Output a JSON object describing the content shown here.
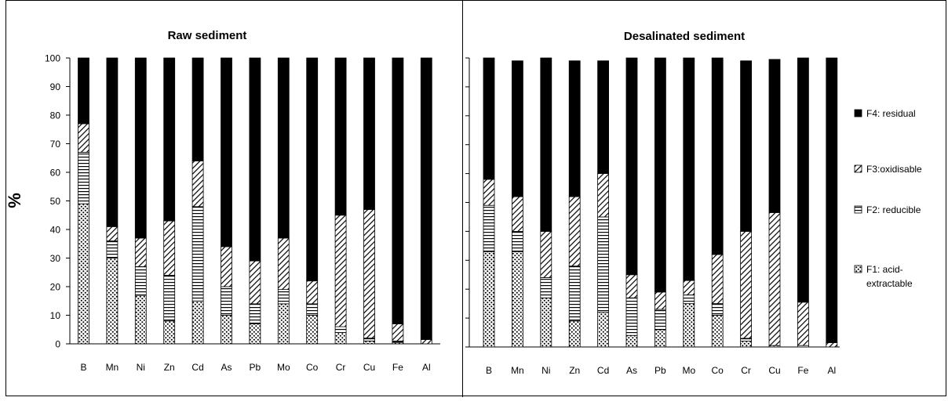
{
  "y_axis_label": "%",
  "chart_data": [
    {
      "type": "bar",
      "stacked": true,
      "title": "Raw sediment",
      "xlabel": "",
      "ylabel": "%",
      "ylim": [
        0,
        100
      ],
      "yticks": [
        0,
        10,
        20,
        30,
        40,
        50,
        60,
        70,
        80,
        90,
        100
      ],
      "grid": false,
      "categories": [
        "B",
        "Mn",
        "Ni",
        "Zn",
        "Cd",
        "As",
        "Pb",
        "Mo",
        "Co",
        "Cr",
        "Cu",
        "Fe",
        "Al"
      ],
      "series": [
        {
          "name": "F1: acid-extractable",
          "pattern": "dots",
          "values": [
            49,
            30,
            17,
            8,
            15,
            10,
            7,
            14,
            10,
            4,
            1,
            0.5,
            0
          ]
        },
        {
          "name": "F2: reducible",
          "pattern": "horizontal",
          "values": [
            18,
            6,
            10,
            16,
            33,
            10,
            7,
            5,
            4,
            2,
            1,
            0.5,
            0
          ]
        },
        {
          "name": "F3:oxidisable",
          "pattern": "diagonal",
          "values": [
            10,
            5,
            10,
            19,
            16,
            14,
            15,
            18,
            8,
            39,
            45,
            6,
            1.5
          ]
        },
        {
          "name": "F4: residual",
          "pattern": "solid",
          "values": [
            23,
            59,
            63,
            57,
            36,
            66,
            71,
            63,
            78,
            55,
            53,
            93,
            98.5
          ]
        }
      ]
    },
    {
      "type": "bar",
      "stacked": true,
      "title": "Desalinated sediment",
      "xlabel": "",
      "ylabel": "",
      "ylim": [
        0,
        100
      ],
      "yticks": [
        0,
        10,
        20,
        30,
        40,
        50,
        60,
        70,
        80,
        90,
        100
      ],
      "grid": false,
      "categories": [
        "B",
        "Mn",
        "Ni",
        "Zn",
        "Cd",
        "As",
        "Pb",
        "Mo",
        "Co",
        "Cr",
        "Cu",
        "Fe",
        "Al"
      ],
      "series": [
        {
          "name": "F1: acid-extractable",
          "pattern": "dots",
          "values": [
            33,
            33,
            17,
            9,
            12,
            4,
            6,
            15,
            11,
            2,
            0.5,
            0,
            0
          ]
        },
        {
          "name": "F2: reducible",
          "pattern": "horizontal",
          "values": [
            16,
            7,
            7,
            19,
            33,
            13,
            7,
            3,
            4,
            1,
            0,
            0.5,
            0
          ]
        },
        {
          "name": "F3:oxidisable",
          "pattern": "diagonal",
          "values": [
            9,
            12,
            16,
            24,
            15,
            8,
            6,
            5,
            17,
            37,
            46,
            15,
            1.5
          ]
        },
        {
          "name": "F4: residual",
          "pattern": "solid",
          "values": [
            42,
            47,
            60,
            47,
            39,
            75,
            81,
            77,
            68,
            59,
            53,
            84.5,
            98.5
          ]
        }
      ]
    }
  ],
  "legend": {
    "placement": "right",
    "items": [
      {
        "pattern": "solid",
        "lines": [
          "F4: residual"
        ]
      },
      {
        "pattern": "diagonal",
        "lines": [
          "F3:oxidisable"
        ]
      },
      {
        "pattern": "horizontal",
        "lines": [
          "F2: reducible"
        ]
      },
      {
        "pattern": "dots",
        "lines": [
          "F1: acid-",
          "extractable"
        ]
      }
    ]
  }
}
